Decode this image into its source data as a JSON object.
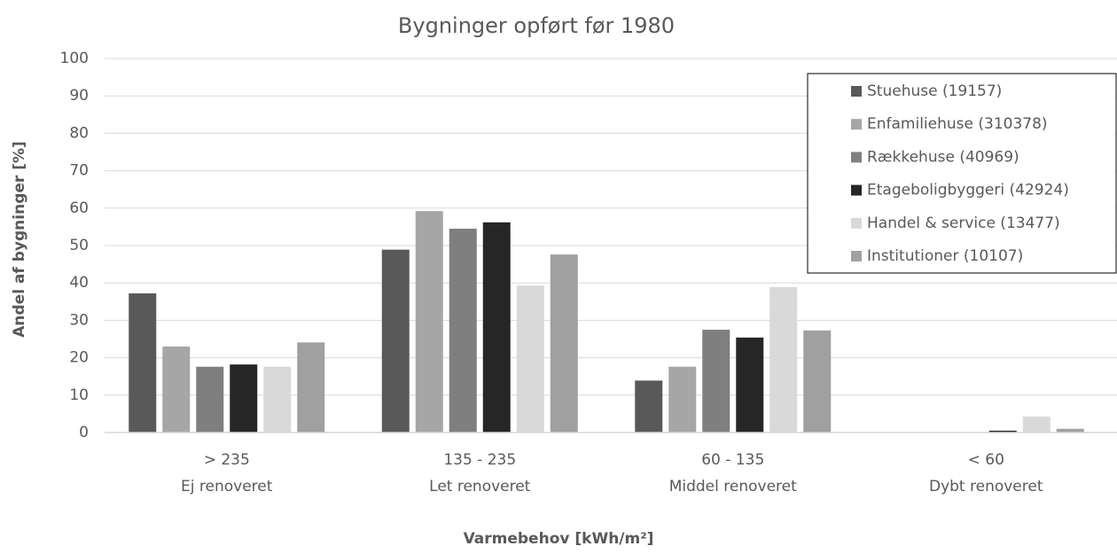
{
  "chart_data": {
    "type": "bar",
    "title": "Bygninger opført før 1980",
    "x_label": "Varmebehov [kWh/m²]",
    "y_label": "Andel af bygninger [%]",
    "categories": [
      [
        "> 235",
        "Ej renoveret"
      ],
      [
        "135 - 235",
        "Let renoveret"
      ],
      [
        "60 - 135",
        "Middel renoveret"
      ],
      [
        "< 60",
        "Dybt renoveret"
      ]
    ],
    "series": [
      {
        "name": "Stuehuse (19157)",
        "color": "#595959",
        "values": [
          37.2,
          48.9,
          13.9,
          0
        ]
      },
      {
        "name": "Enfamiliehuse (310378)",
        "color": "#a6a6a6",
        "values": [
          23,
          59.2,
          17.6,
          0
        ]
      },
      {
        "name": "Rækkehuse (40969)",
        "color": "#7f7f7f",
        "values": [
          17.6,
          54.5,
          27.5,
          0
        ]
      },
      {
        "name": "Etageboligbyggeri (42924)",
        "color": "#262626",
        "values": [
          18.2,
          56.2,
          25.4,
          0.5
        ]
      },
      {
        "name": "Handel & service (13477)",
        "color": "#d9d9d9",
        "values": [
          17.6,
          39.3,
          38.9,
          4.3
        ]
      },
      {
        "name": "Institutioner (10107)",
        "color": "#a0a0a0",
        "values": [
          24.1,
          47.6,
          27.3,
          1.0
        ]
      }
    ],
    "ylim": [
      0,
      100
    ],
    "yticks": [
      0,
      10,
      20,
      30,
      40,
      50,
      60,
      70,
      80,
      90,
      100
    ],
    "grid": true,
    "legend": "top-right"
  }
}
